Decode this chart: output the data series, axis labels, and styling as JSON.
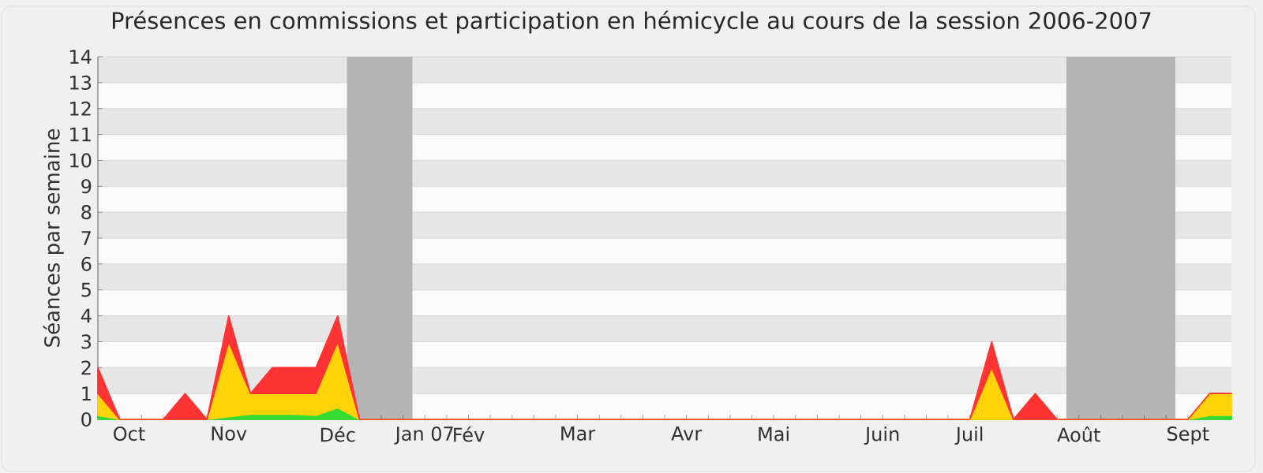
{
  "chart_data": {
    "type": "area",
    "stacked": true,
    "title": "Présences en commissions et participation en hémicycle au cours de la session 2006-2007",
    "ylabel": "Séances par semaine",
    "x": [
      "2006-10-02",
      "2006-10-09",
      "2006-10-16",
      "2006-10-23",
      "2006-10-30",
      "2006-11-06",
      "2006-11-13",
      "2006-11-20",
      "2006-11-27",
      "2006-12-04",
      "2006-12-11",
      "2006-12-18",
      "2006-12-25",
      "2007-01-01",
      "2007-01-08",
      "2007-01-15",
      "2007-01-22",
      "2007-01-29",
      "2007-02-05",
      "2007-02-12",
      "2007-02-19",
      "2007-02-26",
      "2007-03-05",
      "2007-03-12",
      "2007-03-19",
      "2007-03-26",
      "2007-04-02",
      "2007-04-09",
      "2007-04-16",
      "2007-04-23",
      "2007-04-30",
      "2007-05-07",
      "2007-05-14",
      "2007-05-21",
      "2007-05-28",
      "2007-06-04",
      "2007-06-11",
      "2007-06-18",
      "2007-06-25",
      "2007-07-02",
      "2007-07-09",
      "2007-07-16",
      "2007-07-23",
      "2007-07-30",
      "2007-08-06",
      "2007-08-13",
      "2007-08-20",
      "2007-08-27",
      "2007-09-03",
      "2007-09-10",
      "2007-09-17",
      "2007-09-24",
      "2007-10-01"
    ],
    "series": [
      {
        "color": "#33dd33",
        "values": [
          0.15,
          0,
          0,
          0,
          0,
          0,
          0.1,
          0.2,
          0.2,
          0.2,
          0.15,
          0.45,
          0,
          0,
          0,
          0,
          0,
          0,
          0,
          0,
          0,
          0,
          0,
          0,
          0,
          0,
          0,
          0,
          0,
          0,
          0,
          0,
          0,
          0,
          0,
          0,
          0,
          0,
          0,
          0,
          0,
          0,
          0,
          0,
          0,
          0,
          0,
          0,
          0,
          0,
          0,
          0.15,
          0.15
        ]
      },
      {
        "color": "#ffd20a",
        "values": [
          0.85,
          0,
          0,
          0,
          0,
          0,
          2.9,
          0.8,
          0.8,
          0.8,
          0.85,
          2.55,
          0,
          0,
          0,
          0,
          0,
          0,
          0,
          0,
          0,
          0,
          0,
          0,
          0,
          0,
          0,
          0,
          0,
          0,
          0,
          0,
          0,
          0,
          0,
          0,
          0,
          0,
          0,
          0,
          0,
          2,
          0,
          0,
          0,
          0,
          0,
          0,
          0,
          0,
          0,
          0.85,
          0.85
        ]
      },
      {
        "color": "#ff3333",
        "values": [
          1,
          0,
          0,
          0,
          1,
          0,
          1,
          0,
          1,
          1,
          1,
          1,
          0,
          0,
          0,
          0,
          0,
          0,
          0,
          0,
          0,
          0,
          0,
          0,
          0,
          0,
          0,
          0,
          0,
          0,
          0,
          0,
          0,
          0,
          0,
          0,
          0,
          0,
          0,
          0,
          0,
          1,
          0,
          1,
          0,
          0,
          0,
          0,
          0,
          0,
          0,
          0,
          0
        ]
      }
    ],
    "xlim": [
      "2006-10-02",
      "2007-10-01"
    ],
    "ylim": [
      0,
      14
    ],
    "yticks": [
      0,
      1,
      2,
      3,
      4,
      5,
      6,
      7,
      8,
      9,
      10,
      11,
      12,
      13,
      14
    ],
    "xticks": [
      {
        "value": "2006-10-12",
        "label": "Oct"
      },
      {
        "value": "2006-11-13",
        "label": "Nov"
      },
      {
        "value": "2006-12-18",
        "label": "Déc"
      },
      {
        "value": "2007-01-15",
        "label": "Jan 07"
      },
      {
        "value": "2007-01-29",
        "label": "Fév"
      },
      {
        "value": "2007-03-05",
        "label": "Mar"
      },
      {
        "value": "2007-04-09",
        "label": "Avr"
      },
      {
        "value": "2007-05-07",
        "label": "Mai"
      },
      {
        "value": "2007-06-11",
        "label": "Juin"
      },
      {
        "value": "2007-07-09",
        "label": "Juil"
      },
      {
        "value": "2007-08-13",
        "label": "Août"
      },
      {
        "value": "2007-09-17",
        "label": "Sept"
      },
      {
        "value": "2006-10-02",
        "label": null
      },
      {
        "value": "2006-10-09",
        "label": null
      },
      {
        "value": "2006-10-16",
        "label": null
      },
      {
        "value": "2006-10-23",
        "label": null
      },
      {
        "value": "2006-10-30",
        "label": null
      },
      {
        "value": "2006-11-06",
        "label": null
      },
      {
        "value": "2006-11-13",
        "label": null
      },
      {
        "value": "2006-11-20",
        "label": null
      },
      {
        "value": "2006-11-27",
        "label": null
      },
      {
        "value": "2006-12-04",
        "label": null
      },
      {
        "value": "2006-12-11",
        "label": null
      },
      {
        "value": "2006-12-18",
        "label": null
      },
      {
        "value": "2006-12-25",
        "label": null
      },
      {
        "value": "2007-01-01",
        "label": null
      },
      {
        "value": "2007-01-08",
        "label": null
      },
      {
        "value": "2007-01-15",
        "label": null
      },
      {
        "value": "2007-01-22",
        "label": null
      },
      {
        "value": "2007-01-29",
        "label": null
      },
      {
        "value": "2007-02-05",
        "label": null
      },
      {
        "value": "2007-02-12",
        "label": null
      },
      {
        "value": "2007-02-19",
        "label": null
      },
      {
        "value": "2007-02-26",
        "label": null
      },
      {
        "value": "2007-03-05",
        "label": null
      },
      {
        "value": "2007-03-12",
        "label": null
      },
      {
        "value": "2007-03-19",
        "label": null
      },
      {
        "value": "2007-03-26",
        "label": null
      },
      {
        "value": "2007-04-02",
        "label": null
      },
      {
        "value": "2007-04-09",
        "label": null
      },
      {
        "value": "2007-04-16",
        "label": null
      },
      {
        "value": "2007-04-23",
        "label": null
      },
      {
        "value": "2007-04-30",
        "label": null
      },
      {
        "value": "2007-05-07",
        "label": null
      },
      {
        "value": "2007-05-14",
        "label": null
      },
      {
        "value": "2007-05-21",
        "label": null
      },
      {
        "value": "2007-05-28",
        "label": null
      },
      {
        "value": "2007-06-04",
        "label": null
      },
      {
        "value": "2007-06-11",
        "label": null
      },
      {
        "value": "2007-06-18",
        "label": null
      },
      {
        "value": "2007-06-25",
        "label": null
      },
      {
        "value": "2007-07-02",
        "label": null
      },
      {
        "value": "2007-07-09",
        "label": null
      },
      {
        "value": "2007-07-16",
        "label": null
      },
      {
        "value": "2007-07-23",
        "label": null
      },
      {
        "value": "2007-07-30",
        "label": null
      },
      {
        "value": "2007-08-06",
        "label": null
      },
      {
        "value": "2007-08-13",
        "label": null
      },
      {
        "value": "2007-08-20",
        "label": null
      },
      {
        "value": "2007-08-27",
        "label": null
      },
      {
        "value": "2007-09-03",
        "label": null
      },
      {
        "value": "2007-09-10",
        "label": null
      },
      {
        "value": "2007-09-17",
        "label": null
      },
      {
        "value": "2007-09-24",
        "label": null
      },
      {
        "value": "2007-10-01",
        "label": null
      }
    ],
    "bands": [
      {
        "axis": "x",
        "from": "2006-12-21",
        "to": "2007-01-11",
        "color": "#b4b4b4"
      },
      {
        "axis": "x",
        "from": "2007-08-09",
        "to": "2007-09-13",
        "color": "#b4b4b4"
      }
    ],
    "grid": "y"
  }
}
